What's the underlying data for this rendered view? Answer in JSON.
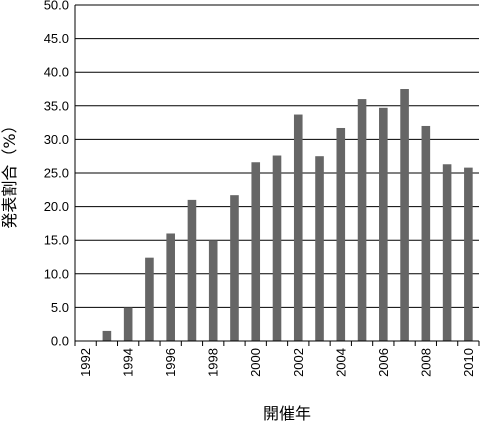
{
  "chart_data": {
    "type": "bar",
    "title": "",
    "xlabel": "開催年",
    "ylabel": "発表割合（%）",
    "ylim": [
      0,
      50
    ],
    "yticks": [
      "0.0",
      "5.0",
      "10.0",
      "15.0",
      "20.0",
      "25.0",
      "30.0",
      "35.0",
      "40.0",
      "45.0",
      "50.0"
    ],
    "categories": [
      1992,
      1993,
      1994,
      1995,
      1996,
      1997,
      1998,
      1999,
      2000,
      2001,
      2002,
      2003,
      2004,
      2005,
      2006,
      2007,
      2008,
      2009,
      2010
    ],
    "xtick_labels": [
      "1992",
      "1994",
      "1996",
      "1998",
      "2000",
      "2002",
      "2004",
      "2006",
      "2008",
      "2010"
    ],
    "values": [
      0.0,
      1.5,
      5.0,
      12.4,
      16.0,
      21.0,
      15.0,
      21.7,
      26.6,
      27.6,
      33.7,
      27.5,
      31.7,
      36.0,
      34.7,
      37.5,
      32.0,
      26.3,
      25.8
    ],
    "grid": true,
    "legend": "none",
    "bar_color": "#666666"
  }
}
